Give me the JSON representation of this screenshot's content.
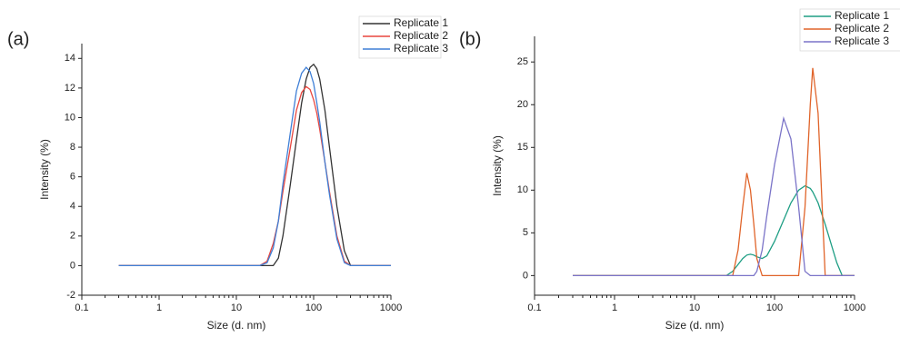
{
  "chart_data": [
    {
      "type": "line",
      "panel_label": "(a)",
      "x_label": "Size (d. nm)",
      "y_label": "Intensity (%)",
      "log_x": true,
      "x": [
        0.3,
        20,
        25,
        30,
        35,
        40,
        50,
        60,
        70,
        80,
        90,
        100,
        110,
        120,
        140,
        160,
        200,
        250,
        300,
        400,
        1000
      ],
      "series": [
        {
          "name": "Replicate 1",
          "color": "#333333",
          "values": [
            0,
            0,
            0,
            0,
            0.5,
            2,
            5.5,
            8.5,
            11,
            12.6,
            13.4,
            13.6,
            13.3,
            12.6,
            10.5,
            8,
            4,
            1,
            0,
            0,
            0
          ]
        },
        {
          "name": "Replicate 2",
          "color": "#e8473f",
          "values": [
            0,
            0,
            0.3,
            1.5,
            3,
            5,
            8,
            10.5,
            11.7,
            12.1,
            11.9,
            11.2,
            10.3,
            9.2,
            7,
            5,
            2,
            0.3,
            0,
            0,
            0
          ]
        },
        {
          "name": "Replicate 3",
          "color": "#3f7fd6",
          "values": [
            0,
            0,
            0.2,
            1.2,
            3,
            5.5,
            9,
            11.8,
            13,
            13.4,
            13.1,
            12.3,
            11,
            9.7,
            7,
            4.8,
            1.8,
            0.2,
            0,
            0,
            0
          ]
        }
      ],
      "xlim": [
        0.1,
        1000
      ],
      "xticks": [
        0.1,
        1,
        10,
        100,
        1000
      ],
      "ylim": [
        -2,
        15
      ],
      "yticks": [
        -2,
        0,
        2,
        4,
        6,
        8,
        10,
        12,
        14
      ]
    },
    {
      "type": "line",
      "panel_label": "(b)",
      "x_label": "Size (d. nm)",
      "y_label": "Intensity (%)",
      "log_x": true,
      "x": [
        0.3,
        25,
        30,
        35,
        40,
        45,
        50,
        55,
        60,
        70,
        80,
        100,
        130,
        160,
        200,
        240,
        280,
        300,
        350,
        430,
        600,
        700,
        1000
      ],
      "series": [
        {
          "name": "Replicate 1",
          "color": "#1e9e84",
          "values": [
            0,
            0,
            0.5,
            1.3,
            2,
            2.4,
            2.5,
            2.4,
            2.2,
            2,
            2.3,
            4,
            6.5,
            8.5,
            10,
            10.5,
            10.2,
            9.8,
            8.5,
            6,
            1.5,
            0,
            0
          ]
        },
        {
          "name": "Replicate 2",
          "color": "#e0642a",
          "values": [
            0,
            0,
            0,
            3,
            8,
            12,
            10,
            6,
            2,
            0,
            0,
            0,
            0,
            0,
            0,
            8,
            20,
            24.3,
            19,
            0,
            0,
            0,
            0
          ]
        },
        {
          "name": "Replicate 3",
          "color": "#7b74c8",
          "values": [
            0,
            0,
            0,
            0,
            0,
            0,
            0,
            0,
            0.5,
            3,
            7,
            13,
            18.4,
            16,
            8,
            0.5,
            0,
            0,
            0,
            0,
            0,
            0,
            0
          ]
        }
      ],
      "xlim": [
        0.1,
        1000
      ],
      "xticks": [
        0.1,
        1,
        10,
        100,
        1000
      ],
      "ylim": [
        -2.3,
        28
      ],
      "yticks": [
        0,
        5,
        10,
        15,
        20,
        25
      ]
    }
  ]
}
